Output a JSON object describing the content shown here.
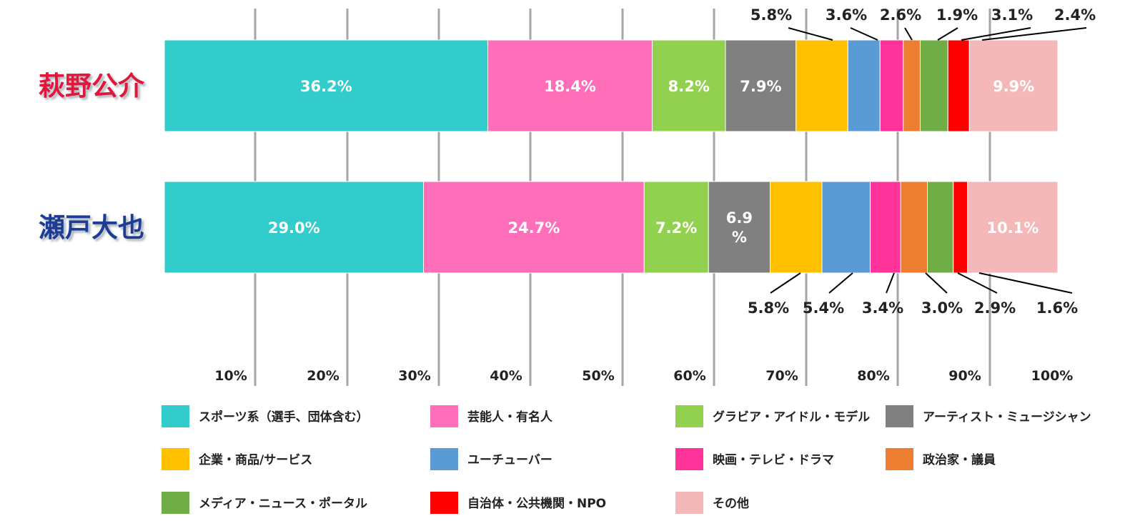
{
  "chart_data": {
    "type": "bar",
    "orientation": "horizontal",
    "stacked": true,
    "categories": [
      "萩野公介",
      "瀬戸大也"
    ],
    "category_colors": [
      "#e0143c",
      "#1f3c96"
    ],
    "x_ticks": [
      "10%",
      "20%",
      "30%",
      "40%",
      "50%",
      "60%",
      "70%",
      "80%",
      "90%",
      "100%"
    ],
    "xlim": [
      0,
      100
    ],
    "grid": true,
    "legend_position": "bottom",
    "series": [
      {
        "name": "スポーツ系（選手、団体含む）",
        "color": "#33cccc",
        "values": [
          36.2,
          29.0
        ],
        "labels": [
          "36.2%",
          "29.0%"
        ],
        "placement": [
          "inside",
          "inside"
        ]
      },
      {
        "name": "芸能人・有名人",
        "color": "#ff6eb9",
        "values": [
          18.4,
          24.7
        ],
        "labels": [
          "18.4%",
          "24.7%"
        ],
        "placement": [
          "inside",
          "inside"
        ]
      },
      {
        "name": "グラビア・アイドル・モデル",
        "color": "#92d050",
        "values": [
          8.2,
          7.2
        ],
        "labels": [
          "8.2%",
          "7.2%"
        ],
        "placement": [
          "inside",
          "inside"
        ]
      },
      {
        "name": "アーティスト・ミュージシャン",
        "color": "#808080",
        "values": [
          7.9,
          6.9
        ],
        "labels": [
          "7.9%",
          "6.9\n%"
        ],
        "placement": [
          "inside",
          "inside"
        ]
      },
      {
        "name": "企業・商品/サービス",
        "color": "#ffc000",
        "values": [
          5.8,
          5.8
        ],
        "labels": [
          "5.8%",
          "5.8%"
        ],
        "placement": [
          "callout",
          "callout"
        ]
      },
      {
        "name": "ユーチューバー",
        "color": "#5b9bd5",
        "values": [
          3.6,
          5.4
        ],
        "labels": [
          "3.6%",
          "5.4%"
        ],
        "placement": [
          "callout",
          "callout"
        ]
      },
      {
        "name": "映画・テレビ・ドラマ",
        "color": "#ff3399",
        "values": [
          2.6,
          3.4
        ],
        "labels": [
          "2.6%",
          "3.4%"
        ],
        "placement": [
          "callout",
          "callout"
        ]
      },
      {
        "name": "政治家・議員",
        "color": "#ed7d31",
        "values": [
          1.9,
          3.0
        ],
        "labels": [
          "1.9%",
          "3.0%"
        ],
        "placement": [
          "callout",
          "callout"
        ]
      },
      {
        "name": "メディア・ニュース・ポータル",
        "color": "#70ad47",
        "values": [
          3.1,
          2.9
        ],
        "labels": [
          "3.1%",
          "2.9%"
        ],
        "placement": [
          "callout",
          "callout"
        ]
      },
      {
        "name": "自治体・公共機関・NPO",
        "color": "#ff0000",
        "values": [
          2.4,
          1.6
        ],
        "labels": [
          "2.4%",
          "1.6%"
        ],
        "placement": [
          "callout",
          "callout"
        ]
      },
      {
        "name": "その他",
        "color": "#f4b8b8",
        "values": [
          9.9,
          10.1
        ],
        "labels": [
          "9.9%",
          "10.1%"
        ],
        "placement": [
          "inside",
          "inside"
        ]
      }
    ]
  }
}
